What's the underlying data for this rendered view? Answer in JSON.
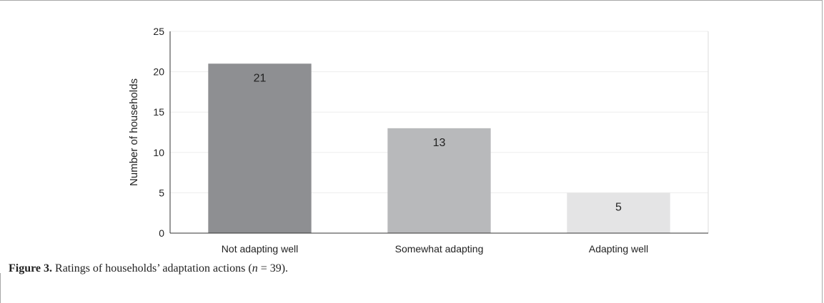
{
  "caption": {
    "label": "Figure 3.",
    "text_before_math": "Ratings of households’ adaptation actions (",
    "math_var": "n",
    "math_rest": " = 39",
    "text_after_math": ")."
  },
  "chart_data": {
    "type": "bar",
    "categories": [
      "Not adapting well",
      "Somewhat adapting",
      "Adapting well"
    ],
    "values": [
      21,
      13,
      5
    ],
    "data_labels": [
      "21",
      "13",
      "5"
    ],
    "title": "",
    "xlabel": "",
    "ylabel": "Number of households",
    "ylim": [
      0,
      25
    ],
    "yticks": [
      0,
      5,
      10,
      15,
      20,
      25
    ],
    "grid": true,
    "bar_colors": [
      "#8e8f92",
      "#b8b9bb",
      "#e4e4e5"
    ]
  }
}
